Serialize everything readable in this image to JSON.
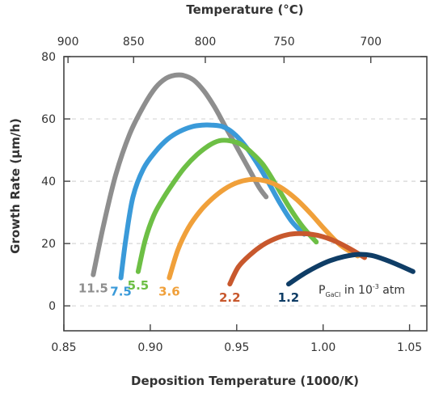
{
  "chart_data": {
    "type": "line",
    "title": "",
    "xlabel": "Deposition Temperature (1000/K)",
    "ylabel": "Growth Rate (µm/h)",
    "x2label": "Temperature (°C)",
    "xlim": [
      0.85,
      1.06
    ],
    "ylim": [
      -8,
      80
    ],
    "xticks": [
      0.85,
      0.9,
      0.95,
      1.0,
      1.05
    ],
    "xtick_labels": [
      "0.85",
      "0.90",
      "0.95",
      "1.00",
      "1.05"
    ],
    "yticks": [
      0,
      20,
      40,
      60,
      80
    ],
    "ytick_labels": [
      "0",
      "20",
      "40",
      "60",
      "80"
    ],
    "x2ticks": [
      900,
      850,
      800,
      750,
      700
    ],
    "x2tick_labels": [
      "900",
      "850",
      "800",
      "750",
      "700"
    ],
    "grid": true,
    "annotation": {
      "prefix": "P",
      "subscript": "GaCl",
      "middle": " in 10",
      "superscript": "-3",
      "suffix": " atm"
    },
    "series": [
      {
        "name": "11.5",
        "color": "#8e8e8e",
        "x": [
          0.867,
          0.873,
          0.88,
          0.888,
          0.896,
          0.903,
          0.909,
          0.914,
          0.919,
          0.925,
          0.931,
          0.937,
          0.943,
          0.95,
          0.957,
          0.963,
          0.967
        ],
        "y": [
          10,
          26,
          42,
          55,
          64,
          70,
          73,
          74,
          74,
          72.5,
          69,
          64,
          58,
          51,
          44,
          38,
          35
        ]
      },
      {
        "name": "7.5",
        "color": "#3a9ad9",
        "x": [
          0.883,
          0.886,
          0.89,
          0.896,
          0.903,
          0.91,
          0.917,
          0.924,
          0.93,
          0.936,
          0.942,
          0.948,
          0.954,
          0.961,
          0.968,
          0.975,
          0.982,
          0.989
        ],
        "y": [
          9,
          22,
          35,
          44,
          49.5,
          53.5,
          56,
          57.5,
          58,
          58,
          57.5,
          55.5,
          52,
          46.5,
          40,
          33,
          27,
          23
        ]
      },
      {
        "name": "5.5",
        "color": "#6dbf45",
        "x": [
          0.893,
          0.897,
          0.902,
          0.908,
          0.914,
          0.92,
          0.927,
          0.934,
          0.94,
          0.946,
          0.952,
          0.958,
          0.965,
          0.972,
          0.98,
          0.988,
          0.996
        ],
        "y": [
          11,
          21,
          29,
          35,
          40,
          44.5,
          48.5,
          51.5,
          53,
          53,
          52,
          49.5,
          45.5,
          39.5,
          32,
          25.5,
          20.5
        ]
      },
      {
        "name": "3.6",
        "color": "#f0a03a",
        "x": [
          0.911,
          0.916,
          0.922,
          0.929,
          0.936,
          0.943,
          0.95,
          0.957,
          0.963,
          0.97,
          0.977,
          0.985,
          0.993,
          1.001,
          1.01,
          1.02
        ],
        "y": [
          9,
          18,
          25,
          30.5,
          34.5,
          37.5,
          39.5,
          40.5,
          40.5,
          39.5,
          37.5,
          34,
          29.5,
          24.5,
          19.5,
          16
        ]
      },
      {
        "name": "2.2",
        "color": "#c8582d",
        "x": [
          0.946,
          0.951,
          0.958,
          0.965,
          0.972,
          0.979,
          0.986,
          0.993,
          1.0,
          1.008,
          1.016,
          1.024
        ],
        "y": [
          7,
          12.5,
          16.5,
          19.5,
          21.5,
          22.8,
          23.2,
          23,
          22.2,
          20.5,
          18.2,
          15.5
        ]
      },
      {
        "name": "1.2",
        "color": "#0f3d66",
        "x": [
          0.98,
          0.988,
          0.996,
          1.004,
          1.012,
          1.02,
          1.028,
          1.036,
          1.044,
          1.052
        ],
        "y": [
          7,
          10,
          12.5,
          14.5,
          15.8,
          16.5,
          16.2,
          14.8,
          13,
          11
        ]
      }
    ]
  }
}
